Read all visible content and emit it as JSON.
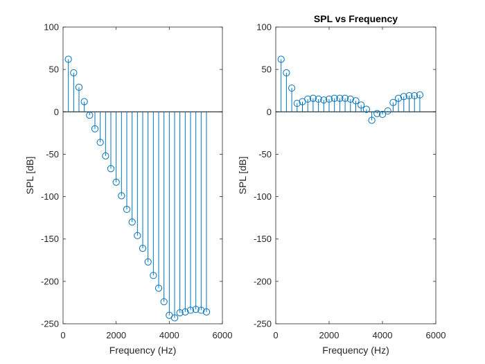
{
  "chart_data": [
    {
      "type": "stem",
      "title": "",
      "xlabel": "Frequency (Hz)",
      "ylabel": "SPL [dB]",
      "xlim": [
        0,
        6000
      ],
      "ylim": [
        -250,
        100
      ],
      "xticks": [
        0,
        2000,
        4000,
        6000
      ],
      "yticks": [
        100,
        50,
        0,
        -50,
        -100,
        -150,
        -200,
        -250
      ],
      "grid": false,
      "series": [
        {
          "color": "#0072BD",
          "x": [
            200,
            400,
            600,
            800,
            1000,
            1200,
            1400,
            1600,
            1800,
            2000,
            2200,
            2400,
            2600,
            2800,
            3000,
            3200,
            3400,
            3600,
            3800,
            4000,
            4200,
            4400,
            4600,
            4800,
            5000,
            5200,
            5400
          ],
          "y": [
            62,
            46,
            29,
            12,
            -4,
            -20,
            -36,
            -52,
            -67,
            -83,
            -99,
            -115,
            -130,
            -146,
            -161,
            -177,
            -193,
            -208,
            -224,
            -240,
            -243,
            -237,
            -236,
            -234,
            -233,
            -234,
            -236
          ]
        }
      ]
    },
    {
      "type": "stem",
      "title": "SPL vs Frequency",
      "xlabel": "Frequency (Hz)",
      "ylabel": "SPL [dB]",
      "xlim": [
        0,
        6000
      ],
      "ylim": [
        -250,
        100
      ],
      "xticks": [
        0,
        2000,
        4000,
        6000
      ],
      "yticks": [
        100,
        50,
        0,
        -50,
        -100,
        -150,
        -200,
        -250
      ],
      "grid": false,
      "series": [
        {
          "color": "#0072BD",
          "x": [
            200,
            400,
            600,
            800,
            1000,
            1200,
            1400,
            1600,
            1800,
            2000,
            2200,
            2400,
            2600,
            2800,
            3000,
            3200,
            3400,
            3600,
            3800,
            4000,
            4200,
            4400,
            4600,
            4800,
            5000,
            5200,
            5400
          ],
          "y": [
            62,
            46,
            28,
            10,
            12,
            15,
            16,
            15,
            14,
            15,
            16,
            16,
            16,
            15,
            13,
            8,
            3,
            -10,
            -2,
            -3,
            1,
            11,
            16,
            18,
            19,
            19,
            20
          ]
        }
      ]
    }
  ]
}
